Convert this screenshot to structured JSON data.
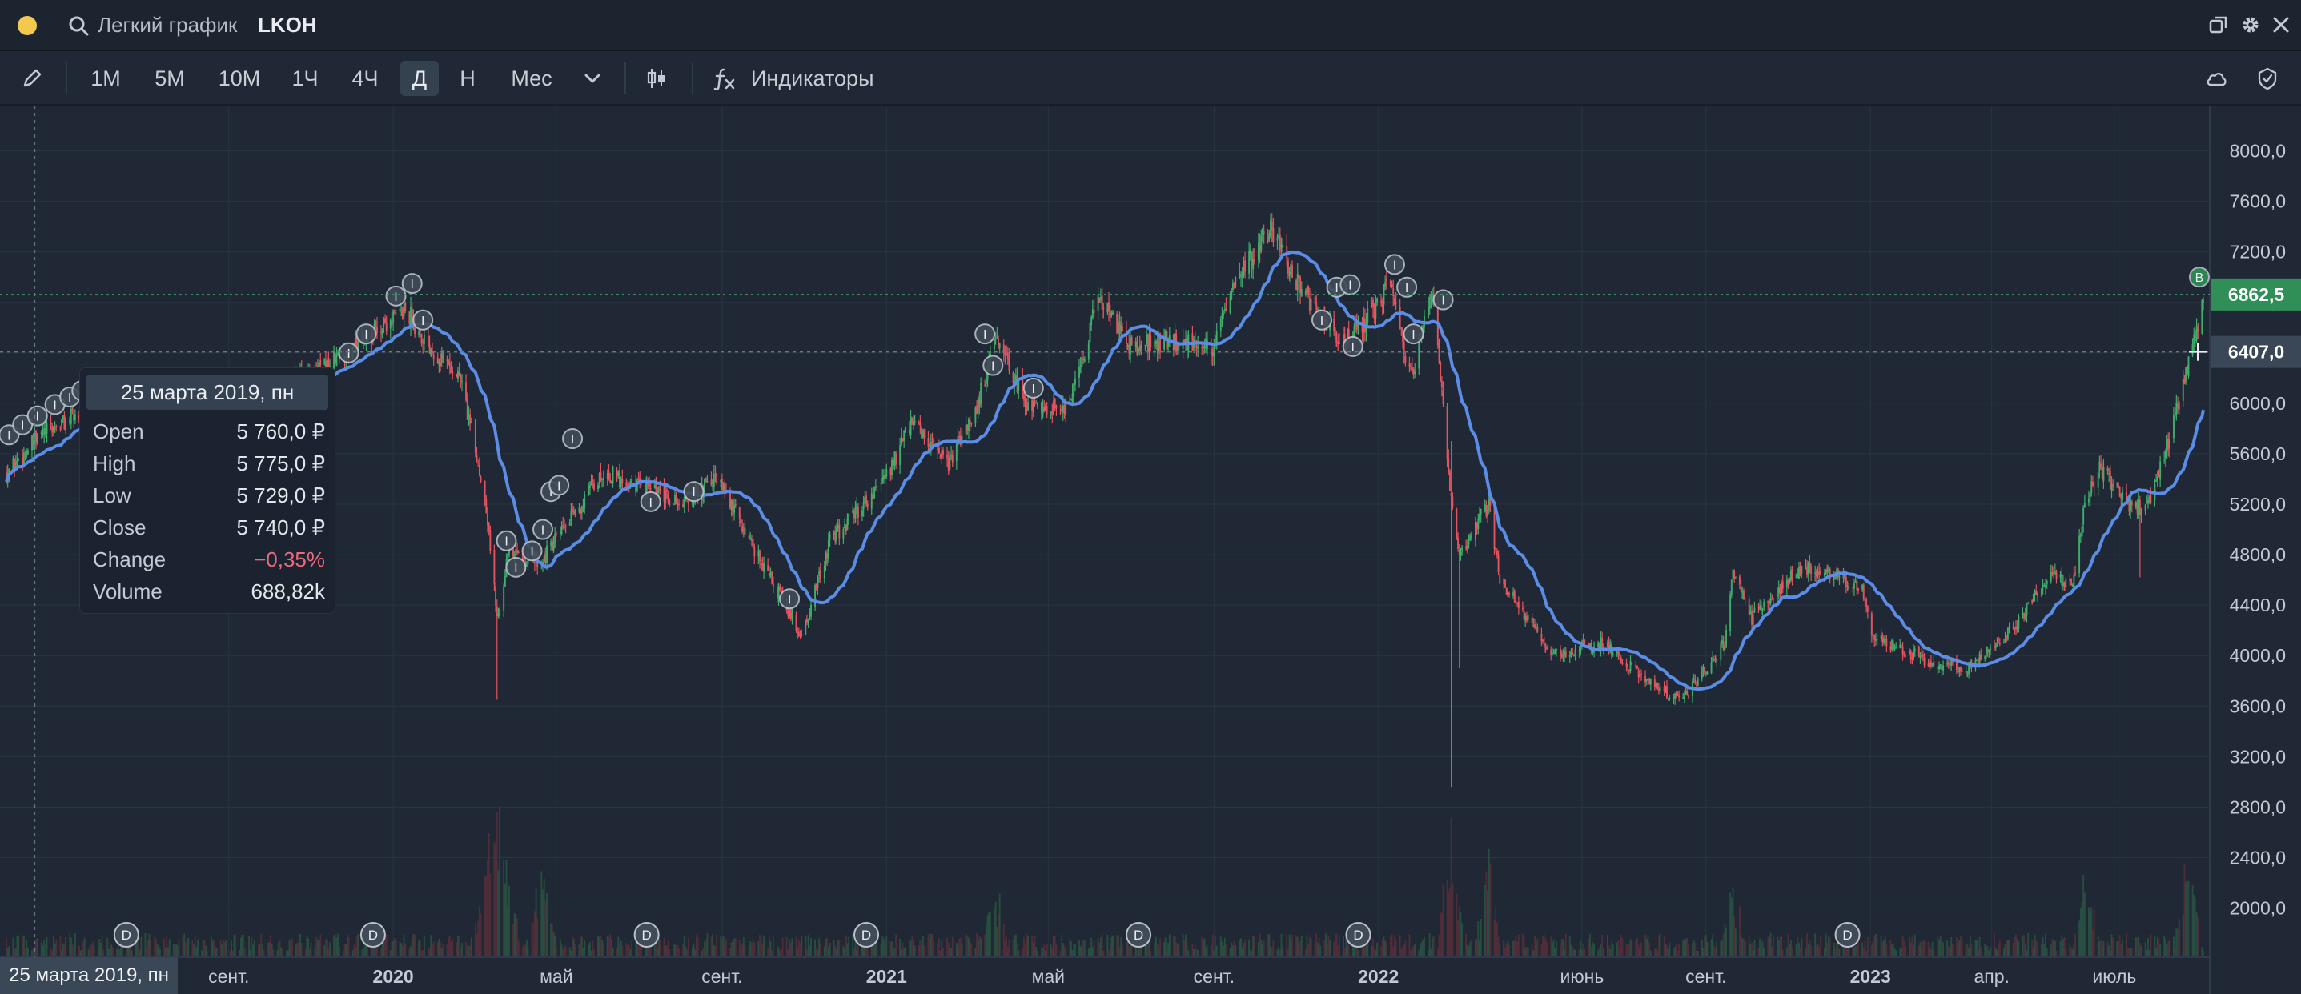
{
  "window": {
    "title": "Легкий график",
    "ticker": "LKOH"
  },
  "toolbar": {
    "timeframes": [
      "1М",
      "5М",
      "10М",
      "1Ч",
      "4Ч",
      "Д",
      "Н",
      "Мес"
    ],
    "active_timeframe": "Д",
    "indicators_label": "Индикаторы"
  },
  "colors": {
    "up": "#3fae6a",
    "down": "#e5535e",
    "ma": "#5b8de6",
    "last_price_badge": "#2f8f56",
    "crosshair_badge": "#3a4757",
    "background": "#1f2834"
  },
  "tooltip": {
    "date": "25 марта 2019, пн",
    "rows": [
      {
        "label": "Open",
        "value": "5 760,0 ₽"
      },
      {
        "label": "High",
        "value": "5 775,0 ₽"
      },
      {
        "label": "Low",
        "value": "5 729,0 ₽"
      },
      {
        "label": "Close",
        "value": "5 740,0 ₽"
      },
      {
        "label": "Change",
        "value": "−0,35%"
      },
      {
        "label": "Volume",
        "value": "688,82k"
      }
    ]
  },
  "crosshair": {
    "date_label": "25 марта 2019, пн",
    "price_label": "6407,0"
  },
  "last_price": {
    "label": "6862,5",
    "value": 6862.5
  },
  "chart_data": {
    "type": "candlestick",
    "y_ticks": [
      "8000,0",
      "7600,0",
      "7200,0",
      "6800,0",
      "6400,0",
      "6000,0",
      "5600,0",
      "5200,0",
      "4800,0",
      "4400,0",
      "4000,0",
      "3600,0",
      "3200,0",
      "2800,0",
      "2400,0",
      "2000,0"
    ],
    "y_tick_values": [
      8000,
      7600,
      7200,
      6800,
      6400,
      6000,
      5600,
      5200,
      4800,
      4400,
      4000,
      3600,
      3200,
      2800,
      2400,
      2000
    ],
    "ylim": [
      1750,
      8130
    ],
    "x_labels": [
      "сент.",
      "2020",
      "май",
      "сент.",
      "2021",
      "май",
      "сент.",
      "2022",
      "июнь",
      "сент.",
      "2023",
      "апр.",
      "июль"
    ],
    "x_label_dates": [
      "2019-09-01",
      "2020-01-01",
      "2020-05-01",
      "2020-09-01",
      "2021-01-01",
      "2021-05-01",
      "2021-09-01",
      "2022-01-01",
      "2022-06-01",
      "2022-09-01",
      "2023-01-01",
      "2023-04-01",
      "2023-07-01"
    ],
    "x_range": [
      "2019-03-20",
      "2023-09-05"
    ],
    "price_path": [
      [
        "2019-03-20",
        5450
      ],
      [
        "2019-04-15",
        5750
      ],
      [
        "2019-05-10",
        5900
      ],
      [
        "2019-06-15",
        6050
      ],
      [
        "2019-08-01",
        6000
      ],
      [
        "2019-09-15",
        6100
      ],
      [
        "2019-11-01",
        6200
      ],
      [
        "2019-12-15",
        6550
      ],
      [
        "2020-01-10",
        6750
      ],
      [
        "2020-01-25",
        6500
      ],
      [
        "2020-02-20",
        6200
      ],
      [
        "2020-03-10",
        5200
      ],
      [
        "2020-03-18",
        4300
      ],
      [
        "2020-03-26",
        4800
      ],
      [
        "2020-04-20",
        4750
      ],
      [
        "2020-06-05",
        5450
      ],
      [
        "2020-07-01",
        5350
      ],
      [
        "2020-08-01",
        5200
      ],
      [
        "2020-08-28",
        5400
      ],
      [
        "2020-09-25",
        4850
      ],
      [
        "2020-10-30",
        4150
      ],
      [
        "2020-11-20",
        4900
      ],
      [
        "2020-12-31",
        5400
      ],
      [
        "2021-01-20",
        5850
      ],
      [
        "2021-02-15",
        5500
      ],
      [
        "2021-03-10",
        6000
      ],
      [
        "2021-03-22",
        6500
      ],
      [
        "2021-04-15",
        6000
      ],
      [
        "2021-05-15",
        5950
      ],
      [
        "2021-06-08",
        6850
      ],
      [
        "2021-07-01",
        6450
      ],
      [
        "2021-08-01",
        6500
      ],
      [
        "2021-08-31",
        6450
      ],
      [
        "2021-09-20",
        7000
      ],
      [
        "2021-10-13",
        7400
      ],
      [
        "2021-11-05",
        6900
      ],
      [
        "2021-11-30",
        6500
      ],
      [
        "2021-12-20",
        6600
      ],
      [
        "2022-01-10",
        6950
      ],
      [
        "2022-01-25",
        6200
      ],
      [
        "2022-02-10",
        6900
      ],
      [
        "2022-02-24",
        5200
      ],
      [
        "2022-03-01",
        4800
      ],
      [
        "2022-03-24",
        5200
      ],
      [
        "2022-04-01",
        4600
      ],
      [
        "2022-05-10",
        4000
      ],
      [
        "2022-06-15",
        4100
      ],
      [
        "2022-07-25",
        3750
      ],
      [
        "2022-08-15",
        3650
      ],
      [
        "2022-09-15",
        4100
      ],
      [
        "2022-09-21",
        4650
      ],
      [
        "2022-10-05",
        4300
      ],
      [
        "2022-11-10",
        4700
      ],
      [
        "2022-12-05",
        4650
      ],
      [
        "2022-12-25",
        4550
      ],
      [
        "2023-01-03",
        4150
      ],
      [
        "2023-02-15",
        3950
      ],
      [
        "2023-03-15",
        3900
      ],
      [
        "2023-04-15",
        4200
      ],
      [
        "2023-05-15",
        4650
      ],
      [
        "2023-05-31",
        4550
      ],
      [
        "2023-06-10",
        5250
      ],
      [
        "2023-06-20",
        5500
      ],
      [
        "2023-07-10",
        5200
      ],
      [
        "2023-07-25",
        5150
      ],
      [
        "2023-08-10",
        5700
      ],
      [
        "2023-08-25",
        6300
      ],
      [
        "2023-09-05",
        6862.5
      ]
    ],
    "volume_spikes": [
      [
        "2020-03-10",
        0.7
      ],
      [
        "2020-03-18",
        1.0
      ],
      [
        "2020-03-26",
        0.8
      ],
      [
        "2020-04-20",
        0.6
      ],
      [
        "2021-03-22",
        0.5
      ],
      [
        "2022-02-24",
        1.0
      ],
      [
        "2022-03-24",
        0.7
      ],
      [
        "2022-09-21",
        0.5
      ],
      [
        "2023-06-10",
        0.7
      ],
      [
        "2023-08-25",
        0.8
      ]
    ],
    "event_markers": [
      {
        "label": "D",
        "date": "2019-06-17"
      },
      {
        "label": "D",
        "date": "2019-12-17"
      },
      {
        "label": "D",
        "date": "2020-07-07"
      },
      {
        "label": "D",
        "date": "2020-12-17"
      },
      {
        "label": "D",
        "date": "2021-07-07"
      },
      {
        "label": "D",
        "date": "2021-12-17"
      },
      {
        "label": "D",
        "date": "2022-12-15"
      }
    ],
    "news_markers": [
      {
        "label": "I",
        "date": "2019-03-22",
        "value": 5750
      },
      {
        "label": "I",
        "date": "2019-04-01",
        "value": 5830
      },
      {
        "label": "I",
        "date": "2019-04-12",
        "value": 5900
      },
      {
        "label": "I",
        "date": "2019-04-25",
        "value": 5990
      },
      {
        "label": "I",
        "date": "2019-05-06",
        "value": 6050
      },
      {
        "label": "I",
        "date": "2019-05-15",
        "value": 6100
      },
      {
        "label": "I",
        "date": "2019-11-29",
        "value": 6400
      },
      {
        "label": "I",
        "date": "2019-12-12",
        "value": 6550
      },
      {
        "label": "I",
        "date": "2020-01-03",
        "value": 6850
      },
      {
        "label": "I",
        "date": "2020-01-15",
        "value": 6950
      },
      {
        "label": "I",
        "date": "2020-01-23",
        "value": 6660
      },
      {
        "label": "I",
        "date": "2020-03-25",
        "value": 4910
      },
      {
        "label": "I",
        "date": "2020-04-01",
        "value": 4700
      },
      {
        "label": "I",
        "date": "2020-04-13",
        "value": 4830
      },
      {
        "label": "I",
        "date": "2020-04-21",
        "value": 5000
      },
      {
        "label": "I",
        "date": "2020-04-27",
        "value": 5300
      },
      {
        "label": "I",
        "date": "2020-05-03",
        "value": 5350
      },
      {
        "label": "I",
        "date": "2020-05-13",
        "value": 5720
      },
      {
        "label": "I",
        "date": "2020-07-10",
        "value": 5220
      },
      {
        "label": "I",
        "date": "2020-08-11",
        "value": 5300
      },
      {
        "label": "I",
        "date": "2020-10-21",
        "value": 4450
      },
      {
        "label": "I",
        "date": "2021-03-15",
        "value": 6550
      },
      {
        "label": "I",
        "date": "2021-03-21",
        "value": 6300
      },
      {
        "label": "I",
        "date": "2021-04-20",
        "value": 6120
      },
      {
        "label": "I",
        "date": "2021-11-20",
        "value": 6660
      },
      {
        "label": "I",
        "date": "2021-12-01",
        "value": 6920
      },
      {
        "label": "I",
        "date": "2021-12-11",
        "value": 6940
      },
      {
        "label": "I",
        "date": "2021-12-13",
        "value": 6450
      },
      {
        "label": "I",
        "date": "2022-01-13",
        "value": 7100
      },
      {
        "label": "I",
        "date": "2022-01-22",
        "value": 6920
      },
      {
        "label": "I",
        "date": "2022-01-27",
        "value": 6550
      },
      {
        "label": "I",
        "date": "2022-02-18",
        "value": 6820
      },
      {
        "label": "B",
        "date": "2023-09-02",
        "value": 7000
      }
    ]
  }
}
